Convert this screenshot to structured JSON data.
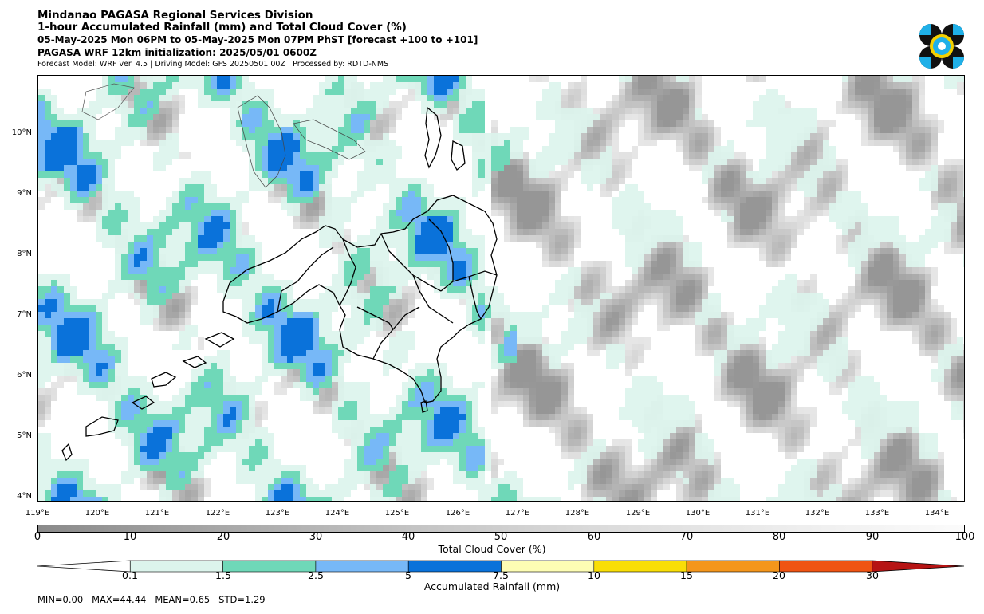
{
  "header": {
    "title_line1": "Mindanao PAGASA Regional Services Division",
    "title_line2": "1-hour Accumulated Rainfall (mm) and Total Cloud Cover (%)",
    "valid_time": "05-May-2025 Mon 06PM to 05-May-2025 Mon 07PM PhST [forecast +100 to +101]",
    "model_init": "PAGASA WRF 12km initialization: 2025/05/01 0600Z",
    "credits": "Forecast Model: WRF ver. 4.5 | Driving Model: GFS 20250501 00Z | Processed by: RDTD-NMS"
  },
  "map": {
    "lat_labels": [
      "10°N",
      "9°N",
      "8°N",
      "7°N",
      "6°N",
      "5°N",
      "4°N"
    ],
    "lon_labels": [
      "119°E",
      "120°E",
      "121°E",
      "122°E",
      "123°E",
      "124°E",
      "125°E",
      "126°E",
      "127°E",
      "128°E",
      "129°E",
      "130°E",
      "131°E",
      "132°E",
      "133°E",
      "134°E"
    ]
  },
  "cloud_cover_legend": {
    "label": "Total Cloud Cover (%)",
    "ticks": [
      "0",
      "10",
      "20",
      "30",
      "40",
      "50",
      "60",
      "70",
      "80",
      "90",
      "100"
    ]
  },
  "rainfall_legend": {
    "label": "Accumulated Rainfall (mm)",
    "ticks": [
      "0.1",
      "1.5",
      "2.5",
      "5",
      "7.5",
      "10",
      "15",
      "20",
      "30"
    ],
    "colors": [
      "#dcf4ec",
      "#6fd8b8",
      "#77b8f7",
      "#0a72da",
      "#fdfdb4",
      "#f9de07",
      "#f4961c",
      "#ef5413",
      "#b61414"
    ]
  },
  "stats": {
    "text": "MIN=0.00   MAX=44.44   MEAN=0.65   STD=1.29"
  }
}
